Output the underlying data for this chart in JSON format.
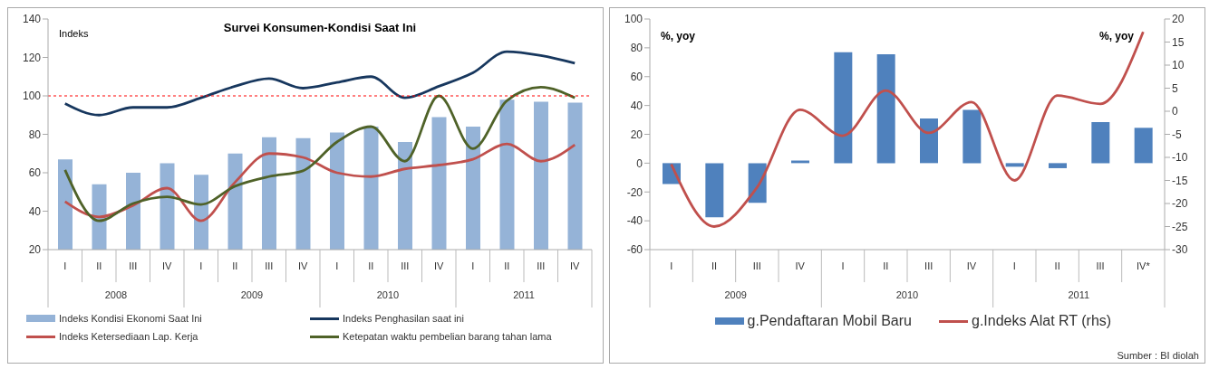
{
  "chart_data": [
    {
      "type": "bar",
      "title": "Survei Konsumen-Kondisi Saat Ini",
      "ylabel": "Indeks",
      "categories": [
        "I",
        "II",
        "III",
        "IV",
        "I",
        "II",
        "III",
        "IV",
        "I",
        "II",
        "III",
        "IV",
        "I",
        "II",
        "III",
        "IV"
      ],
      "annotations": [
        "2008",
        "2009",
        "2010",
        "2011"
      ],
      "series": [
        {
          "name": "Indeks Kondisi Ekonomi Saat Ini",
          "color": "#95b3d7",
          "values": [
            67,
            54,
            60,
            65,
            59,
            70,
            78.5,
            78,
            81,
            84,
            76,
            89,
            84,
            98,
            97,
            96.5
          ]
        },
        {
          "name": "Indeks Penghasilan saat ini",
          "type": "line",
          "color": "#17375e",
          "values": [
            96,
            90,
            94,
            94,
            99,
            105,
            109,
            104,
            107,
            110,
            99,
            105,
            112,
            123,
            121,
            117
          ]
        },
        {
          "name": "Indeks Ketersediaan Lap. Kerja",
          "type": "line",
          "color": "#c0504d",
          "values": [
            45,
            37,
            43,
            52,
            35,
            55,
            70,
            68,
            60,
            58,
            62,
            64,
            67,
            75,
            66,
            74.5
          ]
        },
        {
          "name": "Ketepatan waktu pembelian barang tahan lama",
          "type": "line",
          "color": "#4f6228",
          "values": [
            61.5,
            35,
            44,
            47.5,
            43.5,
            53,
            58,
            61,
            76,
            84,
            66,
            100,
            72.5,
            97.5,
            104.5,
            99
          ]
        }
      ],
      "ylim": [
        20,
        140
      ],
      "yticks": [
        20,
        40,
        60,
        80,
        100,
        120,
        140
      ],
      "ref_lines": [
        {
          "axis": "y",
          "value": 100,
          "color": "#ff0000",
          "line_style": "dashed"
        }
      ],
      "legend": "bottom"
    },
    {
      "type": "bar",
      "ylabel": "%, yoy",
      "y2label": "%, yoy",
      "categories": [
        "I",
        "II",
        "III",
        "IV",
        "I",
        "II",
        "III",
        "IV",
        "I",
        "II",
        "III",
        "IV*"
      ],
      "annotations": [
        "2009",
        "2010",
        "2011",
        "Sumber : BI diolah"
      ],
      "series": [
        {
          "name": "g.Pendaftaran Mobil Baru",
          "color": "#4f81bd",
          "values": [
            -14.5,
            -37.5,
            -27.5,
            1.8,
            77,
            75.5,
            31,
            37,
            -2.5,
            -3.5,
            28.5,
            24.5
          ]
        },
        {
          "name": "g.Indeks Alat RT (rhs)",
          "type": "line",
          "axis": "y2",
          "color": "#c0504d",
          "values": [
            -11.5,
            -25,
            -16.5,
            0.3,
            -5.3,
            4.5,
            -4.7,
            2,
            -15,
            3.4,
            1.6,
            17.2
          ]
        }
      ],
      "ylim": [
        -60,
        100
      ],
      "yticks": [
        -60,
        -40,
        -20,
        0,
        20,
        40,
        60,
        80,
        100
      ],
      "y2lim": [
        -30,
        20
      ],
      "y2ticks": [
        -30,
        -25,
        -20,
        -15,
        -10,
        -5,
        0,
        5,
        10,
        15,
        20
      ],
      "legend": "bottom"
    }
  ]
}
